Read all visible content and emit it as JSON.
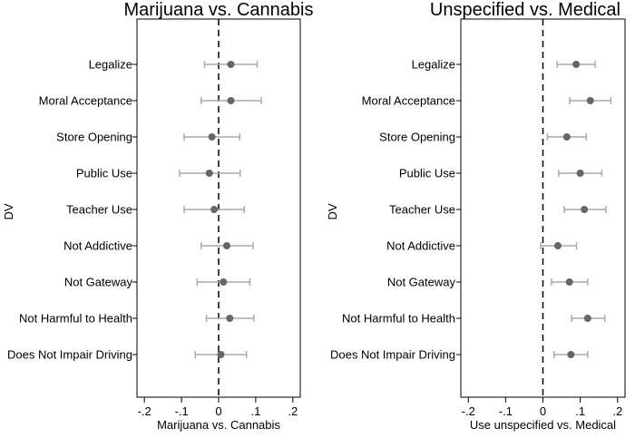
{
  "chart_data": [
    {
      "type": "scatter",
      "title": "Marijuana vs. Cannabis",
      "xlabel": "Marijuana vs. Cannabis",
      "ylabel": "DV",
      "xlim": [
        -0.22,
        0.22
      ],
      "xticks": [
        -0.2,
        -0.1,
        0,
        0.1,
        0.2
      ],
      "xtick_labels": [
        "-.2",
        "-.1",
        "0",
        ".1",
        ".2"
      ],
      "reference_line": 0,
      "grid": false,
      "marker_color": "#666666",
      "ci_color": "#aaaaaa",
      "categories": [
        "Legalize",
        "Moral Acceptance",
        "Store Opening",
        "Public Use",
        "Teacher Use",
        "Not Addictive",
        "Not Gateway",
        "Not Harmful to Health",
        "Does Not Impair Driving"
      ],
      "estimates": [
        0.033,
        0.033,
        -0.018,
        -0.025,
        -0.012,
        0.022,
        0.013,
        0.03,
        0.006
      ],
      "ci_low": [
        -0.038,
        -0.047,
        -0.093,
        -0.105,
        -0.093,
        -0.047,
        -0.058,
        -0.033,
        -0.063
      ],
      "ci_high": [
        0.104,
        0.115,
        0.057,
        0.058,
        0.069,
        0.093,
        0.084,
        0.095,
        0.075
      ]
    },
    {
      "type": "scatter",
      "title": "Unspecified vs. Medical",
      "xlabel": "Use unspecified vs. Medical",
      "ylabel": "DV",
      "xlim": [
        -0.22,
        0.22
      ],
      "xticks": [
        -0.2,
        -0.1,
        0,
        0.1,
        0.2
      ],
      "xtick_labels": [
        "-.2",
        "-.1",
        "0",
        ".1",
        ".2"
      ],
      "reference_line": 0,
      "grid": false,
      "marker_color": "#666666",
      "ci_color": "#aaaaaa",
      "categories": [
        "Legalize",
        "Moral Acceptance",
        "Store Opening",
        "Public Use",
        "Teacher Use",
        "Not Addictive",
        "Not Gateway",
        "Not Harmful to Health",
        "Does Not Impair Driving"
      ],
      "estimates": [
        0.089,
        0.127,
        0.064,
        0.1,
        0.111,
        0.04,
        0.071,
        0.12,
        0.075
      ],
      "ci_low": [
        0.038,
        0.072,
        0.012,
        0.042,
        0.057,
        -0.006,
        0.023,
        0.077,
        0.03
      ],
      "ci_high": [
        0.14,
        0.182,
        0.116,
        0.158,
        0.169,
        0.09,
        0.12,
        0.166,
        0.12
      ]
    }
  ]
}
